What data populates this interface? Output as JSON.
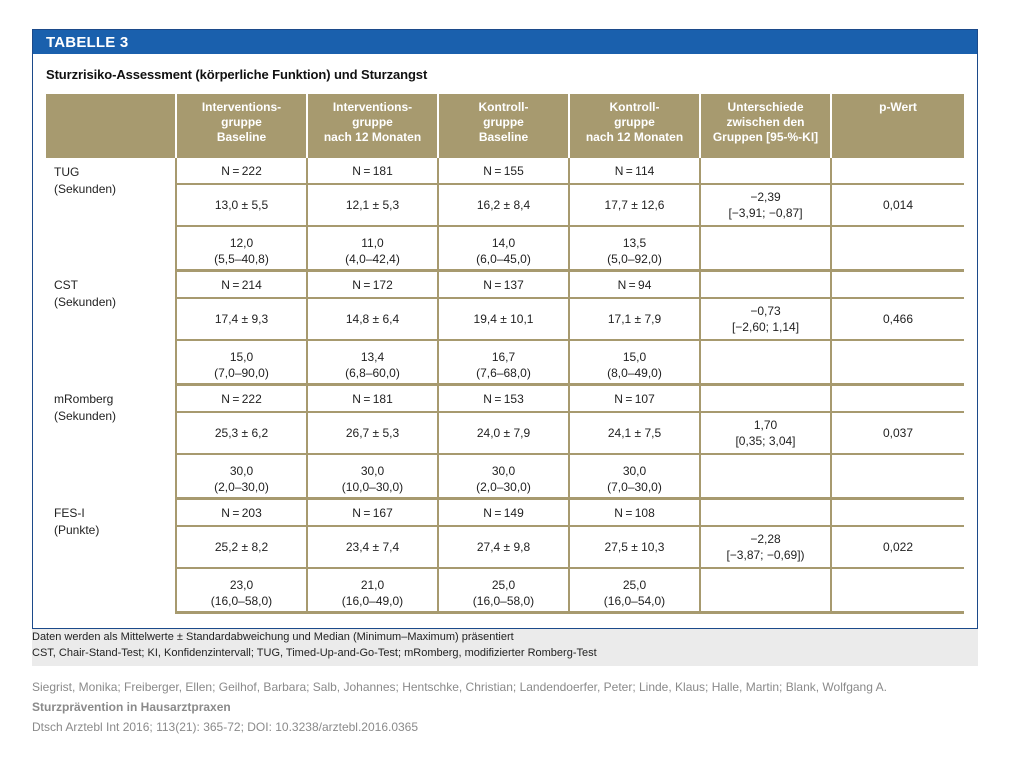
{
  "banner": "TABELLE 3",
  "title": "Sturzrisiko-Assessment (körperliche Funktion) und Sturzangst",
  "headers": [
    [
      ""
    ],
    [
      "Interventions-",
      "gruppe",
      "Baseline"
    ],
    [
      "Interventions-",
      "gruppe",
      "nach 12 Monaten"
    ],
    [
      "Kontroll-",
      "gruppe",
      "Baseline"
    ],
    [
      "Kontroll-",
      "gruppe",
      "nach 12 Monaten"
    ],
    [
      "Unterschiede",
      "zwischen den",
      "Gruppen [95-%-KI]"
    ],
    [
      "p-Wert"
    ]
  ],
  "groups": [
    {
      "label": [
        "TUG",
        "(Sekunden)"
      ],
      "rows": [
        [
          "N = 222",
          "N = 181",
          "N = 155",
          "N = 114",
          "",
          ""
        ],
        [
          "13,0 ± 5,5",
          "12,1 ± 5,3",
          "16,2 ± 8,4",
          "17,7 ± 12,6",
          "−2,39\n[−3,91; −0,87]",
          "0,014"
        ],
        [
          "12,0\n(5,5–40,8)",
          "11,0\n(4,0–42,4)",
          "14,0\n(6,0–45,0)",
          "13,5\n(5,0–92,0)",
          "",
          ""
        ]
      ]
    },
    {
      "label": [
        "CST",
        "(Sekunden)"
      ],
      "rows": [
        [
          "N = 214",
          "N = 172",
          "N = 137",
          "N = 94",
          "",
          ""
        ],
        [
          "17,4 ± 9,3",
          "14,8 ± 6,4",
          "19,4 ± 10,1",
          "17,1 ± 7,9",
          "−0,73\n[−2,60; 1,14]",
          "0,466"
        ],
        [
          "15,0\n(7,0–90,0)",
          "13,4\n(6,8–60,0)",
          "16,7\n(7,6–68,0)",
          "15,0\n(8,0–49,0)",
          "",
          ""
        ]
      ]
    },
    {
      "label": [
        "mRomberg",
        "(Sekunden)"
      ],
      "rows": [
        [
          "N = 222",
          "N = 181",
          "N = 153",
          "N = 107",
          "",
          ""
        ],
        [
          "25,3 ± 6,2",
          "26,7 ± 5,3",
          "24,0 ± 7,9",
          "24,1 ± 7,5",
          "1,70\n[0,35; 3,04]",
          "0,037"
        ],
        [
          "30,0\n(2,0–30,0)",
          "30,0\n(10,0–30,0)",
          "30,0\n(2,0–30,0)",
          "30,0\n(7,0–30,0)",
          "",
          ""
        ]
      ]
    },
    {
      "label": [
        "FES-I",
        "(Punkte)"
      ],
      "rows": [
        [
          "N = 203",
          "N = 167",
          "N = 149",
          "N = 108",
          "",
          ""
        ],
        [
          "25,2 ± 8,2",
          "23,4 ± 7,4",
          "27,4 ± 9,8",
          "27,5 ± 10,3",
          "−2,28\n[−3,87; −0,69])",
          "0,022"
        ],
        [
          "23,0\n(16,0–58,0)",
          "21,0\n(16,0–49,0)",
          "25,0\n(16,0–58,0)",
          "25,0\n(16,0–54,0)",
          "",
          ""
        ]
      ]
    }
  ],
  "footnote1": "Daten werden als Mittelwerte ± Standardabweichung und Median (Minimum–Maximum) präsentiert",
  "footnote2": "CST, Chair-Stand-Test; KI, Konfidenzintervall; TUG, Timed-Up-and-Go-Test; mRomberg, modifizierter Romberg-Test",
  "citation": {
    "authors": "Siegrist, Monika; Freiberger, Ellen; Geilhof, Barbara; Salb, Johannes; Hentschke, Christian; Landendoerfer, Peter; Linde, Klaus; Halle, Martin; Blank, Wolfgang A.",
    "title": "Sturzprävention in Hausarztpraxen",
    "source": "Dtsch Arztebl Int 2016; 113(21): 365-72; DOI: 10.3238/arztebl.2016.0365"
  }
}
